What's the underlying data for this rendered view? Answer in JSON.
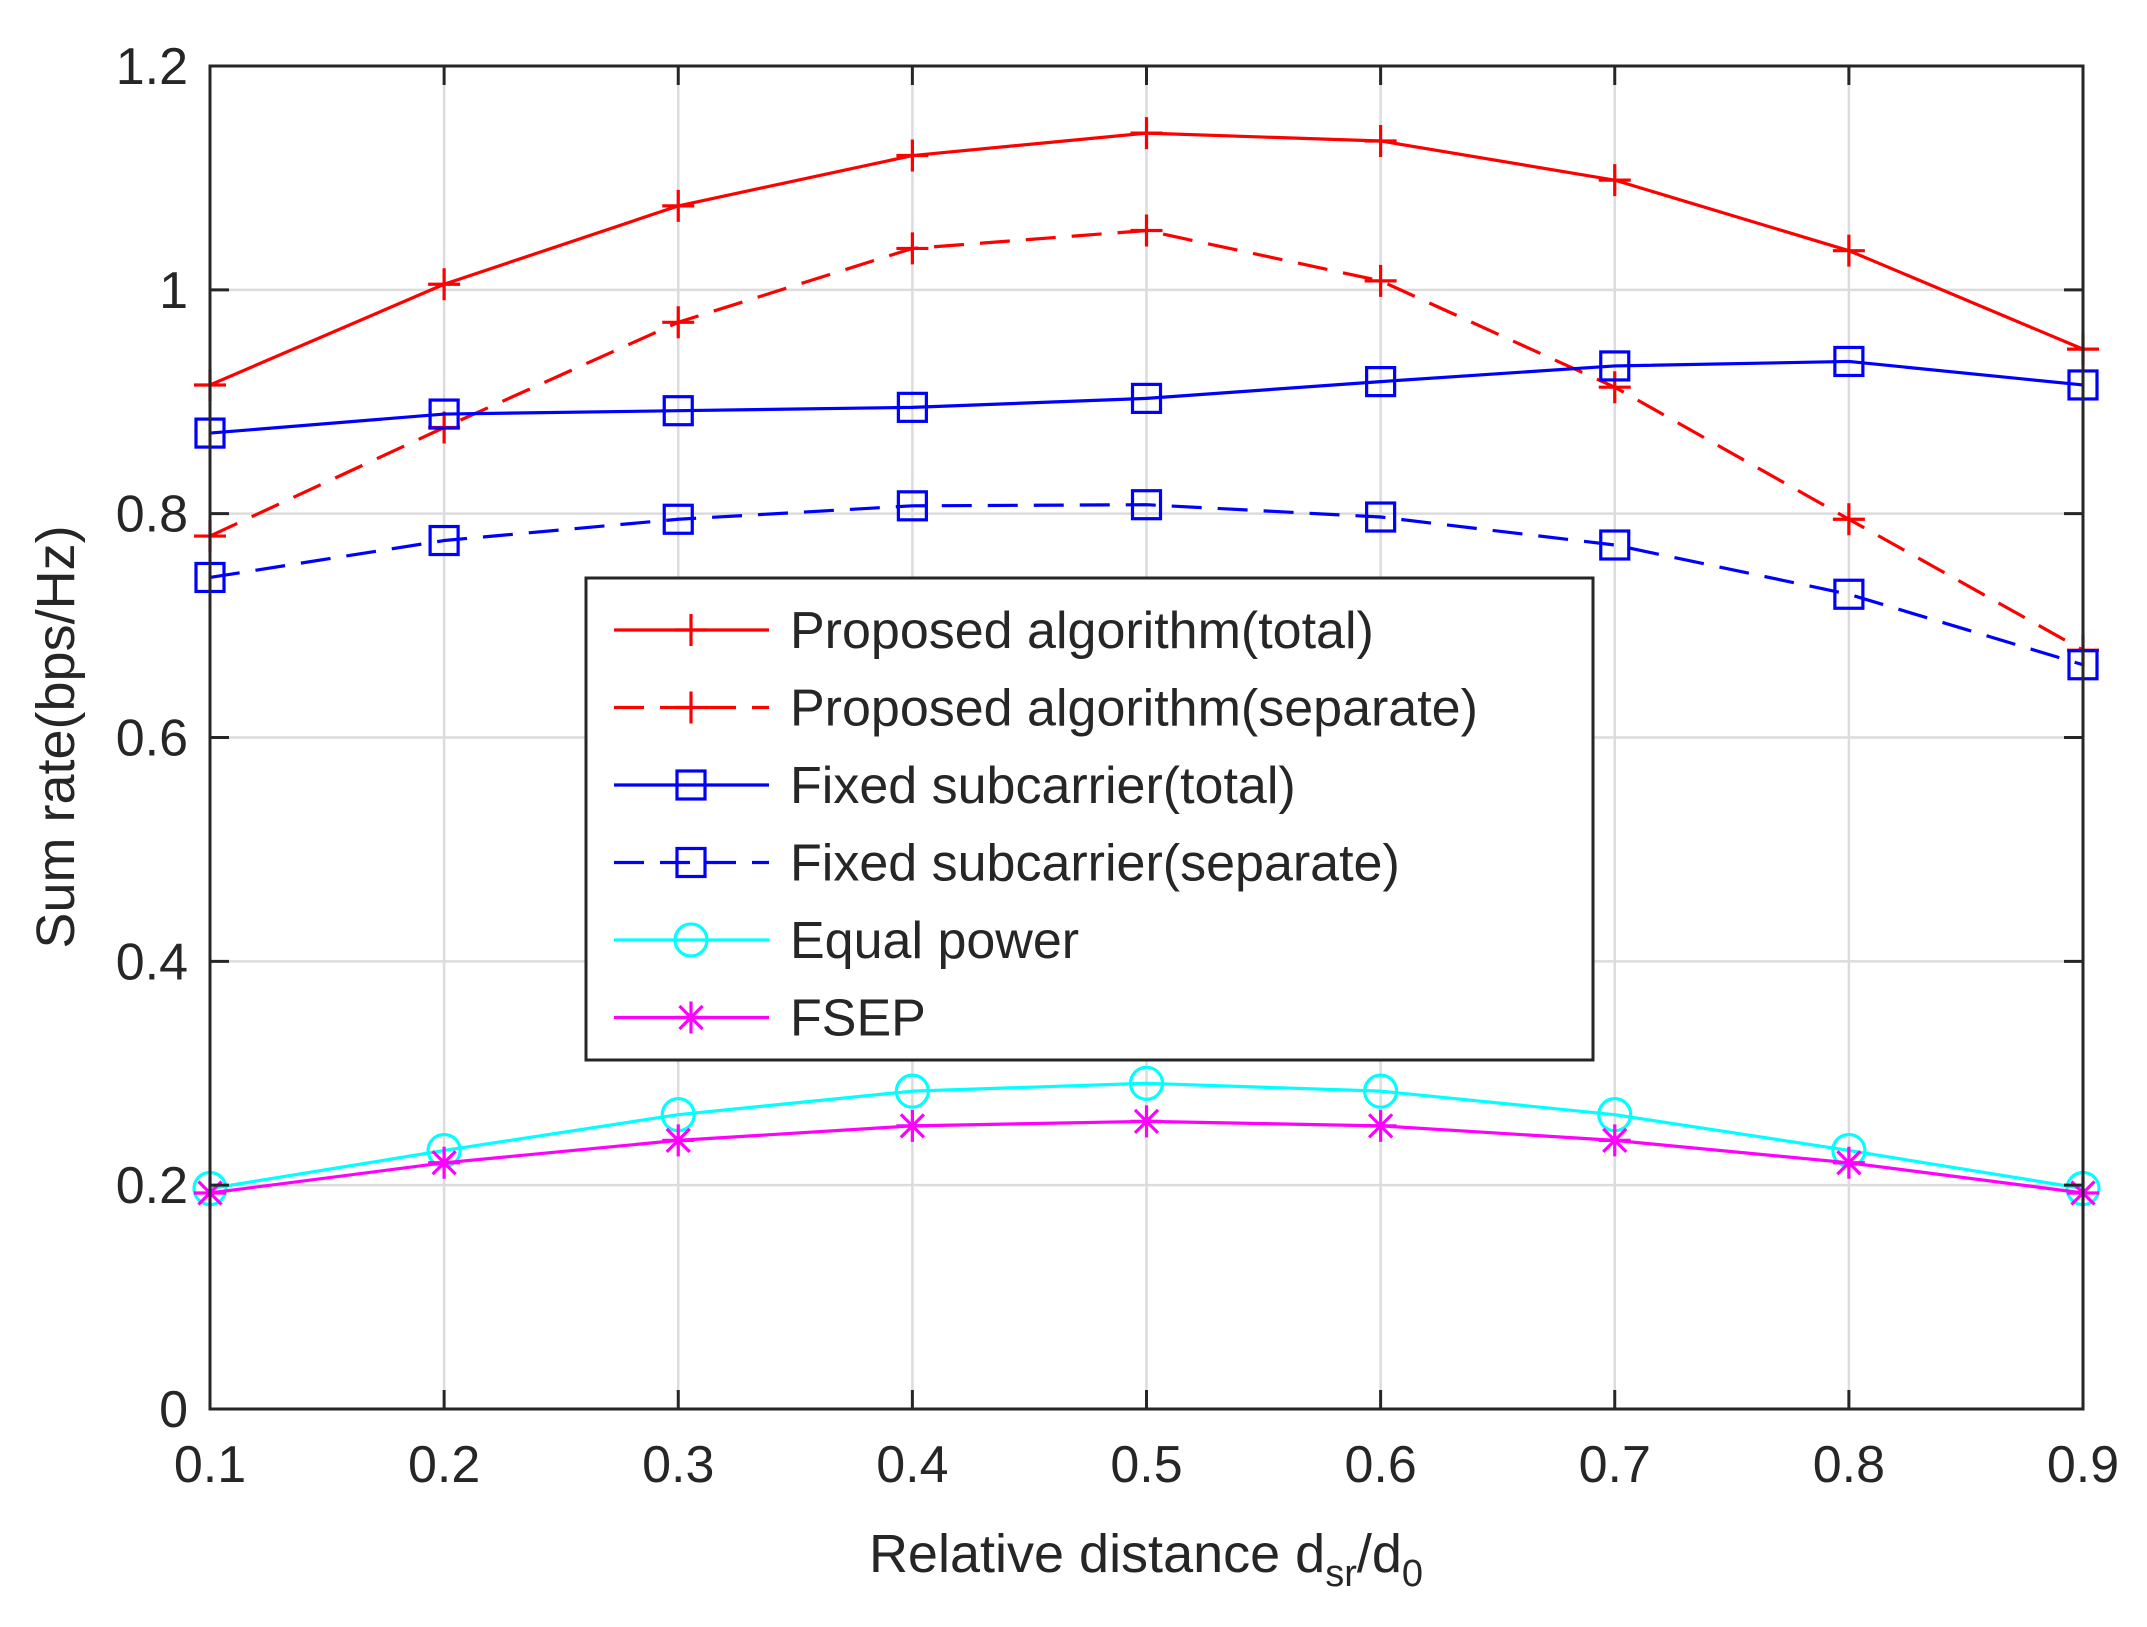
{
  "chart_data": {
    "type": "line",
    "title": "",
    "xlabel": "Relative distance d_sr/d_0",
    "xlabel_parts": {
      "main": "Relative distance d",
      "sub1": "sr",
      "mid": "/d",
      "sub2": "0"
    },
    "ylabel": "Sum rate(bps/Hz)",
    "xlim": [
      0.1,
      0.9
    ],
    "ylim": [
      0,
      1.2
    ],
    "xticks": [
      0.1,
      0.2,
      0.3,
      0.4,
      0.5,
      0.6,
      0.7,
      0.8,
      0.9
    ],
    "yticks": [
      0,
      0.2,
      0.4,
      0.6,
      0.8,
      1.0,
      1.2
    ],
    "xtick_labels": [
      "0.1",
      "0.2",
      "0.3",
      "0.4",
      "0.5",
      "0.6",
      "0.7",
      "0.8",
      "0.9"
    ],
    "ytick_labels": [
      "0",
      "0.2",
      "0.4",
      "0.6",
      "0.8",
      "1",
      "1.2"
    ],
    "grid": true,
    "legend_position": "center",
    "x": [
      0.1,
      0.2,
      0.3,
      0.4,
      0.5,
      0.6,
      0.7,
      0.8,
      0.9
    ],
    "series": [
      {
        "name": "Proposed algorithm(total)",
        "color": "#ff0000",
        "dash": "solid",
        "marker": "plus",
        "values": [
          0.915,
          1.005,
          1.075,
          1.12,
          1.14,
          1.133,
          1.098,
          1.035,
          0.947
        ]
      },
      {
        "name": "Proposed algorithm(separate)",
        "color": "#ff0000",
        "dash": "dashed",
        "marker": "plus",
        "values": [
          0.78,
          0.877,
          0.971,
          1.037,
          1.053,
          1.008,
          0.913,
          0.795,
          0.678
        ]
      },
      {
        "name": "Fixed subcarrier(total)",
        "color": "#0000ff",
        "dash": "solid",
        "marker": "square",
        "values": [
          0.872,
          0.889,
          0.892,
          0.895,
          0.903,
          0.918,
          0.932,
          0.936,
          0.915
        ]
      },
      {
        "name": "Fixed subcarrier(separate)",
        "color": "#0000ff",
        "dash": "dashed",
        "marker": "square",
        "values": [
          0.743,
          0.776,
          0.795,
          0.807,
          0.808,
          0.797,
          0.772,
          0.728,
          0.665
        ]
      },
      {
        "name": "Equal power",
        "color": "#00ffff",
        "dash": "solid",
        "marker": "circle",
        "values": [
          0.197,
          0.231,
          0.263,
          0.284,
          0.291,
          0.284,
          0.263,
          0.231,
          0.197
        ]
      },
      {
        "name": "FSEP",
        "color": "#ff00ff",
        "dash": "solid",
        "marker": "asterisk",
        "values": [
          0.193,
          0.22,
          0.24,
          0.253,
          0.257,
          0.253,
          0.24,
          0.22,
          0.193
        ]
      }
    ]
  }
}
